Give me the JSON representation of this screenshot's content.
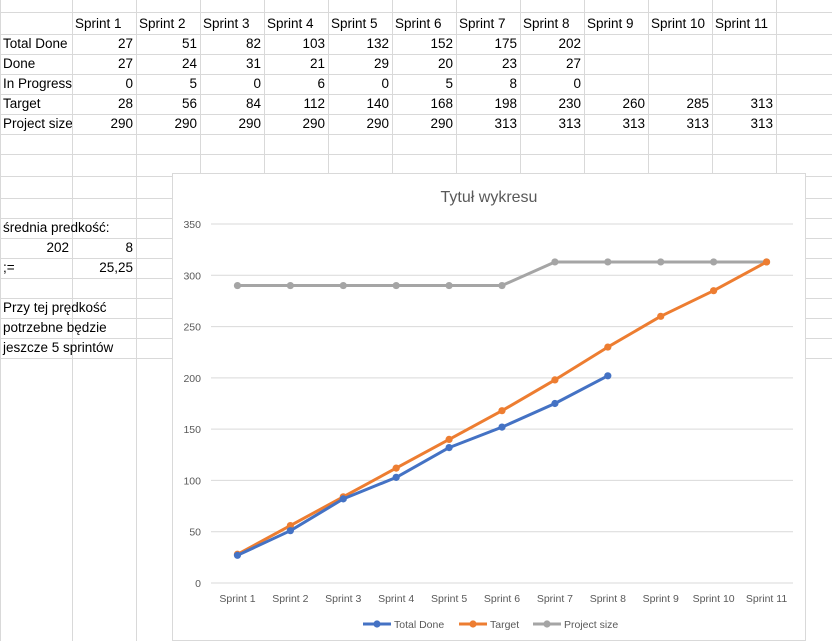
{
  "sheet": {
    "header_row": [
      "Sprint 1",
      "Sprint 2",
      "Sprint 3",
      "Sprint 4",
      "Sprint 5",
      "Sprint 6",
      "Sprint 7",
      "Sprint 8",
      "Sprint 9",
      "Sprint 10",
      "Sprint 11"
    ],
    "rows": [
      {
        "label": "Total Done",
        "values": [
          "27",
          "51",
          "82",
          "103",
          "132",
          "152",
          "175",
          "202",
          "",
          "",
          ""
        ]
      },
      {
        "label": "Done",
        "values": [
          "27",
          "24",
          "31",
          "21",
          "29",
          "20",
          "23",
          "27",
          "",
          "",
          ""
        ]
      },
      {
        "label": "In Progress",
        "values": [
          "0",
          "5",
          "0",
          "6",
          "0",
          "5",
          "8",
          "0",
          "",
          "",
          ""
        ]
      },
      {
        "label": "Target",
        "values": [
          "28",
          "56",
          "84",
          "112",
          "140",
          "168",
          "198",
          "230",
          "260",
          "285",
          "313"
        ]
      },
      {
        "label": "Project size",
        "values": [
          "290",
          "290",
          "290",
          "290",
          "290",
          "290",
          "313",
          "313",
          "313",
          "313",
          "313"
        ]
      }
    ],
    "avg_label": "średnia predkość:",
    "avg_total": "202",
    "avg_sprints": "8",
    "avg_result_label": ";=",
    "avg_result": "25,25",
    "note_line1": "Przy tej prędkość",
    "note_line2": "potrzebne będzie",
    "note_line3": "jeszcze 5 sprintów"
  },
  "chart_data": {
    "type": "line",
    "title": "Tytuł wykresu",
    "categories": [
      "Sprint 1",
      "Sprint 2",
      "Sprint 3",
      "Sprint 4",
      "Sprint 5",
      "Sprint 6",
      "Sprint 7",
      "Sprint 8",
      "Sprint 9",
      "Sprint 10",
      "Sprint 11"
    ],
    "series": [
      {
        "name": "Total Done",
        "color": "#4472c4",
        "values": [
          27,
          51,
          82,
          103,
          132,
          152,
          175,
          202,
          null,
          null,
          null
        ]
      },
      {
        "name": "Target",
        "color": "#ed7d31",
        "values": [
          28,
          56,
          84,
          112,
          140,
          168,
          198,
          230,
          260,
          285,
          313
        ]
      },
      {
        "name": "Project size",
        "color": "#a5a5a5",
        "values": [
          290,
          290,
          290,
          290,
          290,
          290,
          313,
          313,
          313,
          313,
          313
        ]
      }
    ],
    "ylim": [
      0,
      350
    ],
    "yticks": [
      "0",
      "50",
      "100",
      "150",
      "200",
      "250",
      "300",
      "350"
    ],
    "grid": true,
    "legend": "bottom"
  }
}
